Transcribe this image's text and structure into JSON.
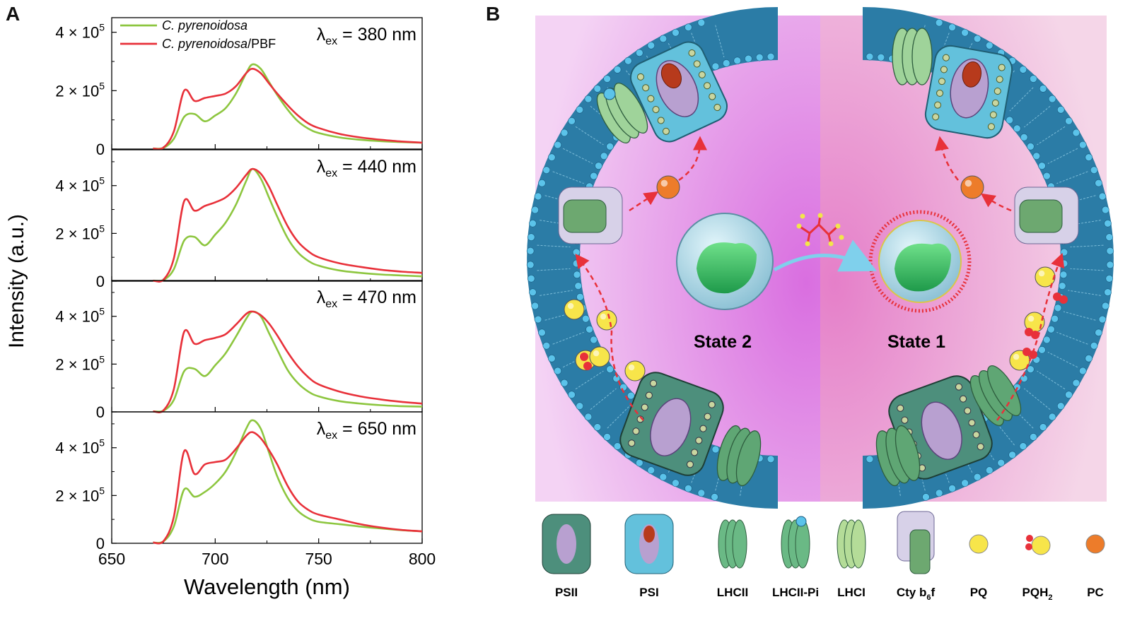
{
  "panels": {
    "a": "A",
    "b": "B"
  },
  "chart_data": {
    "type": "line",
    "ylabel": "Intensity (a.u.)",
    "xlabel": "Wavelength (nm)",
    "xlim": [
      650,
      800
    ],
    "x_ticks": [
      "650",
      "700",
      "750",
      "800"
    ],
    "y_tick_labels": [
      "0",
      "2 × 10",
      "4 × 10"
    ],
    "y_tick_exp": "5",
    "legend": {
      "placement": "top-left of first subplot",
      "entries": [
        {
          "name_italic": "C. pyrenoidosa",
          "name_suffix": "",
          "color": "#8dc63f"
        },
        {
          "name_italic": "C. pyrenoidosa",
          "name_suffix": "/PBF",
          "color": "#e8313a"
        }
      ]
    },
    "x": [
      670,
      675,
      680,
      685,
      690,
      695,
      700,
      705,
      710,
      715,
      718,
      722,
      726,
      730,
      735,
      740,
      745,
      750,
      760,
      770,
      780,
      790,
      800
    ],
    "subplots": [
      {
        "excitation": {
          "prefix": "λ",
          "sub": "ex",
          "value": " = 380 nm"
        },
        "ylim": [
          0,
          450000
        ],
        "series": [
          {
            "name": "C. pyrenoidosa",
            "color": "#8dc63f",
            "values": [
              2000,
              4000,
              35000,
              110000,
              120000,
              95000,
              115000,
              140000,
              190000,
              260000,
              290000,
              275000,
              230000,
              185000,
              135000,
              95000,
              70000,
              55000,
              40000,
              32000,
              27000,
              24000,
              22000
            ]
          },
          {
            "name": "C. pyrenoidosa/PBF",
            "color": "#e8313a",
            "values": [
              2000,
              5000,
              60000,
              200000,
              165000,
              175000,
              182000,
              190000,
              215000,
              260000,
              275000,
              260000,
              225000,
              190000,
              150000,
              115000,
              88000,
              72000,
              52000,
              40000,
              32000,
              26000,
              22000
            ]
          }
        ]
      },
      {
        "excitation": {
          "prefix": "λ",
          "sub": "ex",
          "value": " = 440 nm"
        },
        "ylim": [
          0,
          550000
        ],
        "series": [
          {
            "name": "C. pyrenoidosa",
            "color": "#8dc63f",
            "values": [
              2000,
              5000,
              50000,
              170000,
              185000,
              150000,
              195000,
              245000,
              320000,
              420000,
              470000,
              430000,
              350000,
              270000,
              180000,
              120000,
              85000,
              65000,
              45000,
              35000,
              28000,
              24000,
              20000
            ]
          },
          {
            "name": "C. pyrenoidosa/PBF",
            "color": "#e8313a",
            "values": [
              2000,
              6000,
              95000,
              335000,
              295000,
              315000,
              330000,
              350000,
              390000,
              445000,
              470000,
              450000,
              395000,
              320000,
              230000,
              165000,
              125000,
              100000,
              75000,
              60000,
              48000,
              40000,
              35000
            ]
          }
        ]
      },
      {
        "excitation": {
          "prefix": "λ",
          "sub": "ex",
          "value": " = 470 nm"
        },
        "ylim": [
          0,
          550000
        ],
        "series": [
          {
            "name": "C. pyrenoidosa",
            "color": "#8dc63f",
            "values": [
              2000,
              5000,
              50000,
              170000,
              180000,
              150000,
              195000,
              245000,
              315000,
              390000,
              420000,
              400000,
              330000,
              260000,
              175000,
              120000,
              85000,
              65000,
              45000,
              35000,
              28000,
              24000,
              22000
            ]
          },
          {
            "name": "C. pyrenoidosa/PBF",
            "color": "#e8313a",
            "values": [
              2000,
              6000,
              95000,
              335000,
              285000,
              300000,
              310000,
              325000,
              365000,
              410000,
              420000,
              405000,
              370000,
              320000,
              250000,
              190000,
              145000,
              115000,
              85000,
              65000,
              52000,
              42000,
              35000
            ]
          }
        ]
      },
      {
        "excitation": {
          "prefix": "λ",
          "sub": "ex",
          "value": " = 650 nm"
        },
        "ylim": [
          0,
          550000
        ],
        "series": [
          {
            "name": "C. pyrenoidosa",
            "color": "#8dc63f",
            "values": [
              3000,
              8000,
              70000,
              225000,
              195000,
              215000,
              250000,
              300000,
              380000,
              480000,
              515000,
              480000,
              380000,
              280000,
              190000,
              135000,
              105000,
              90000,
              80000,
              70000,
              62000,
              55000,
              50000
            ]
          },
          {
            "name": "C. pyrenoidosa/PBF",
            "color": "#e8313a",
            "values": [
              3000,
              9000,
              110000,
              385000,
              290000,
              330000,
              340000,
              350000,
              395000,
              450000,
              465000,
              440000,
              390000,
              330000,
              240000,
              175000,
              140000,
              120000,
              100000,
              80000,
              66000,
              56000,
              50000
            ]
          }
        ]
      }
    ]
  },
  "schematic": {
    "state_left": "State 2",
    "state_right": "State 1",
    "key": [
      {
        "label": "PSII",
        "icon": "psii-icon"
      },
      {
        "label": "PSI",
        "icon": "psi-icon"
      },
      {
        "label": "LHCII",
        "icon": "lhcii-icon"
      },
      {
        "label": "LHCII-Pi",
        "icon": "lhcii-pi-icon"
      },
      {
        "label": "LHCI",
        "icon": "lhci-icon"
      },
      {
        "label": "Cty b",
        "sub": "6",
        "tail": "f",
        "icon": "cytochrome-b6f-icon"
      },
      {
        "label": "PQ",
        "icon": "pq-icon"
      },
      {
        "label": "PQH",
        "sub": "2",
        "tail": "",
        "icon": "pqh2-icon"
      },
      {
        "label": "PC",
        "icon": "pc-icon"
      }
    ],
    "colors": {
      "background_left": "#e79be0",
      "background_right": "#ee98c8",
      "membrane": "#2b7ca6",
      "head": "#5bc3ea",
      "arrow": "#e8313a"
    }
  }
}
